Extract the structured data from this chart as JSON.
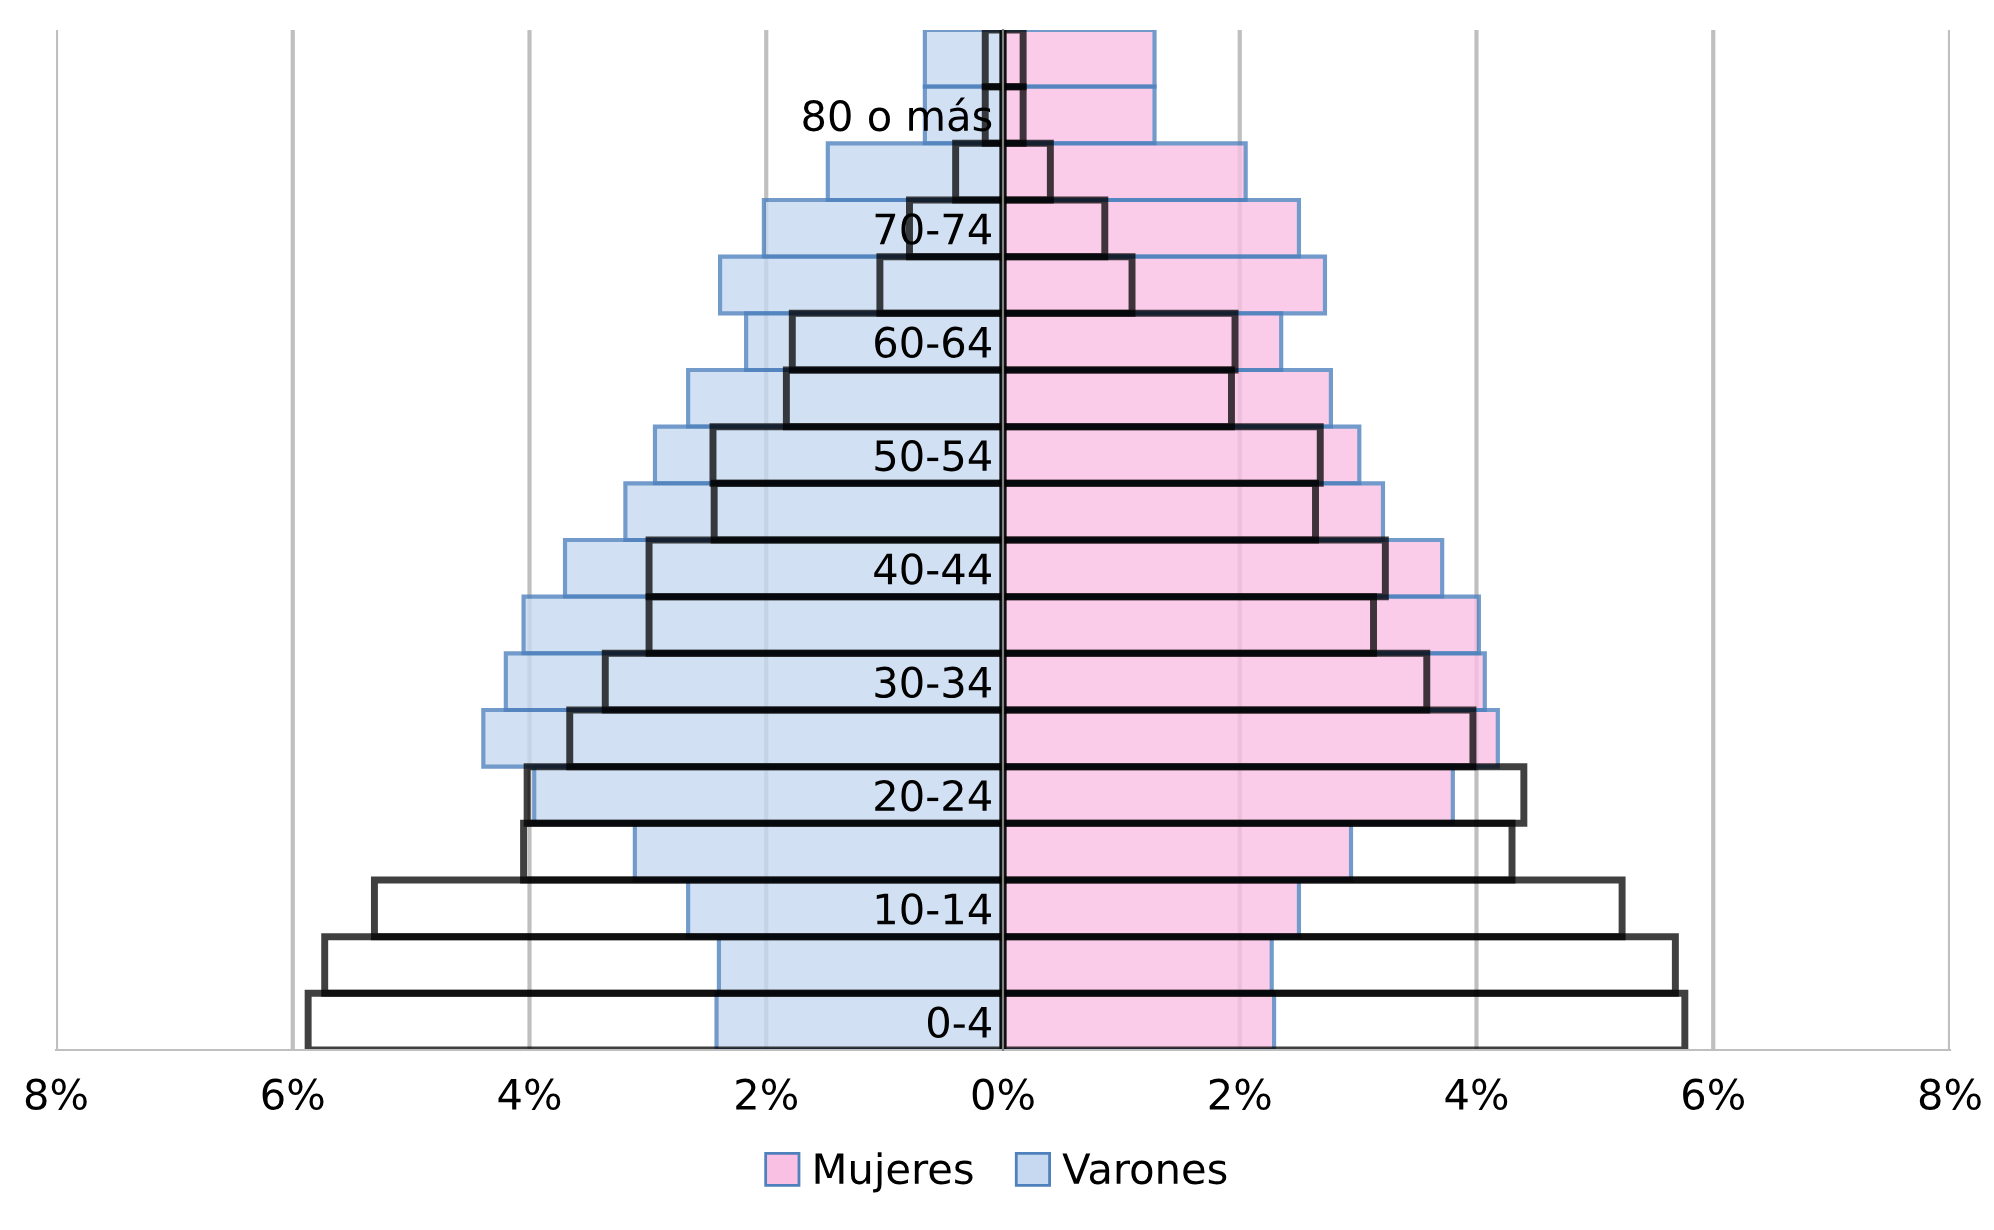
{
  "chart_data": {
    "type": "bar",
    "orientation": "horizontal",
    "categories": [
      null,
      "80 o más",
      null,
      "70-74",
      null,
      "60-64",
      null,
      "50-54",
      null,
      "40-44",
      null,
      "30-34",
      null,
      "20-24",
      null,
      "10-14",
      null,
      "0-4"
    ],
    "series": [
      {
        "name": "Mujeres",
        "color": "#f9c0e4",
        "values": [
          1.28,
          1.28,
          2.05,
          2.5,
          2.72,
          2.35,
          2.77,
          3.01,
          3.21,
          3.71,
          4.02,
          4.07,
          4.18,
          3.8,
          2.94,
          2.5,
          2.27,
          2.29
        ]
      },
      {
        "name": "Varones",
        "color": "#c6d9f0",
        "values": [
          -0.66,
          -0.66,
          -1.48,
          -2.02,
          -2.39,
          -2.17,
          -2.66,
          -2.94,
          -3.19,
          -3.7,
          -4.05,
          -4.2,
          -4.39,
          -3.96,
          -3.11,
          -2.66,
          -2.4,
          -2.42
        ]
      },
      {
        "color": "#000000",
        "values": [
          0.17,
          0.17,
          0.4,
          0.86,
          1.09,
          1.96,
          1.93,
          2.68,
          2.64,
          3.23,
          3.13,
          3.58,
          3.97,
          4.4,
          4.3,
          5.23,
          5.68,
          5.76
        ]
      },
      {
        "color": "#000000",
        "values": [
          -0.15,
          -0.15,
          -0.4,
          -0.79,
          -1.04,
          -1.78,
          -1.83,
          -2.45,
          -2.44,
          -2.99,
          -2.99,
          -3.36,
          -3.66,
          -4.02,
          -4.05,
          -5.31,
          -5.73,
          -5.87
        ]
      }
    ],
    "xlim": [
      -8,
      8
    ],
    "xticks": [
      {
        "value": -8,
        "label": "8%"
      },
      {
        "value": -6,
        "label": "6%"
      },
      {
        "value": -4,
        "label": "4%"
      },
      {
        "value": -2,
        "label": "2%"
      },
      {
        "value": 0,
        "label": "0%"
      },
      {
        "value": 2,
        "label": "2%"
      },
      {
        "value": 4,
        "label": "4%"
      },
      {
        "value": 6,
        "label": "6%"
      },
      {
        "value": 8,
        "label": "8%"
      }
    ],
    "grid": "x",
    "legend": "bottom"
  }
}
